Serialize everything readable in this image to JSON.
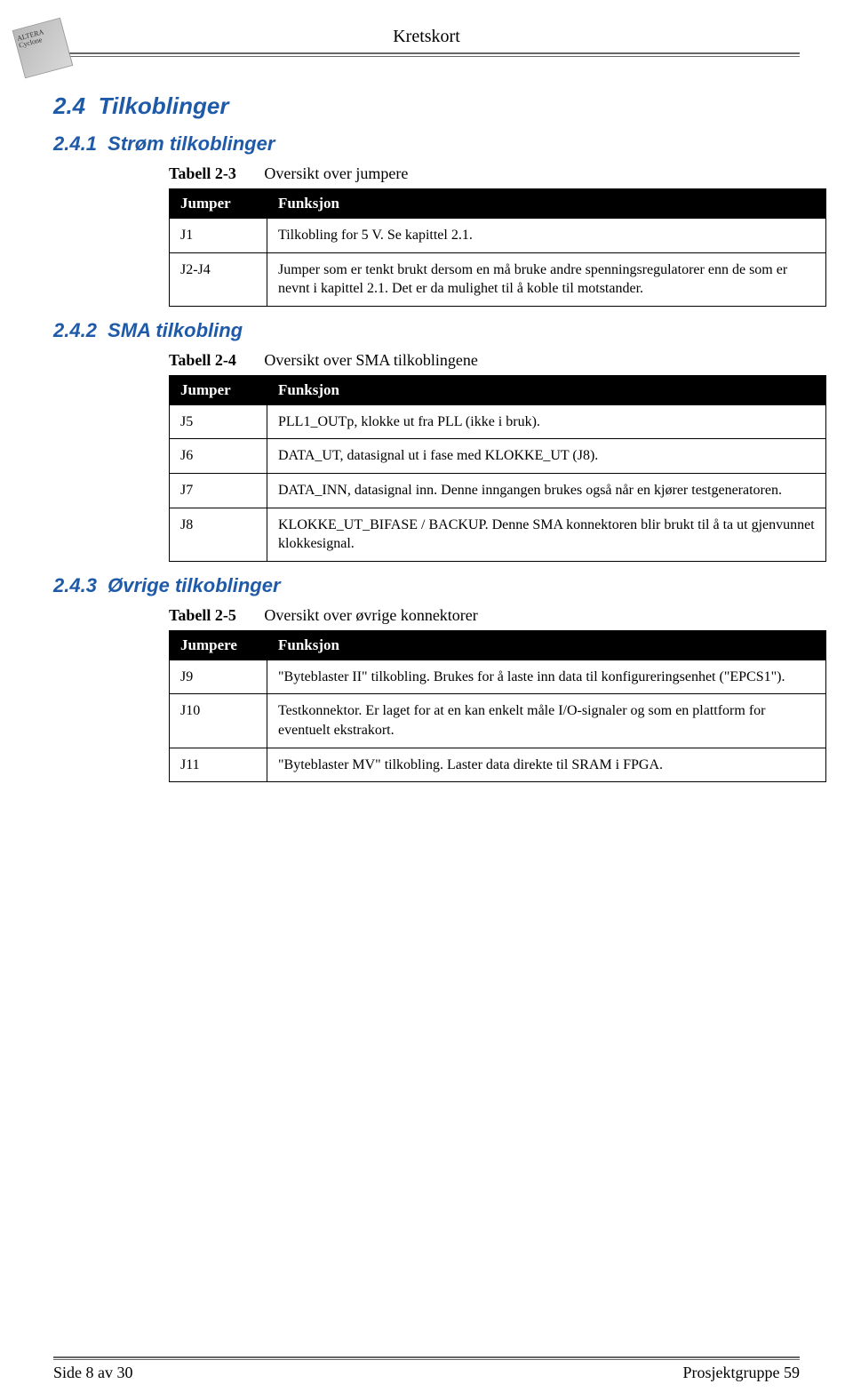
{
  "header": {
    "title": "Kretskort",
    "logo_text": "ALTERA Cyclone"
  },
  "section": {
    "h2_num": "2.4",
    "h2_title": "Tilkoblinger",
    "s1": {
      "num": "2.4.1",
      "title": "Strøm tilkoblinger",
      "caption_label": "Tabell 2-3",
      "caption_text": "Oversikt over jumpere",
      "col_a": "Jumper",
      "col_b": "Funksjon",
      "rows": [
        {
          "a": "J1",
          "b": "Tilkobling for 5 V. Se kapittel 2.1."
        },
        {
          "a": "J2-J4",
          "b": "Jumper som er tenkt brukt dersom en må bruke andre spenningsregulatorer enn de som er nevnt i kapittel 2.1. Det er da mulighet til å koble til motstander."
        }
      ]
    },
    "s2": {
      "num": "2.4.2",
      "title": "SMA tilkobling",
      "caption_label": "Tabell 2-4",
      "caption_text": "Oversikt over SMA tilkoblingene",
      "col_a": "Jumper",
      "col_b": "Funksjon",
      "rows": [
        {
          "a": "J5",
          "b": "PLL1_OUTp, klokke ut fra PLL (ikke i bruk)."
        },
        {
          "a": "J6",
          "b": "DATA_UT, datasignal ut i fase med KLOKKE_UT (J8)."
        },
        {
          "a": "J7",
          "b": "DATA_INN, datasignal inn.\nDenne inngangen brukes også når en kjører testgeneratoren."
        },
        {
          "a": "J8",
          "b": "KLOKKE_UT_BIFASE / BACKUP.\nDenne SMA konnektoren blir brukt til å ta ut gjenvunnet klokkesignal."
        }
      ]
    },
    "s3": {
      "num": "2.4.3",
      "title": "Øvrige tilkoblinger",
      "caption_label": "Tabell 2-5",
      "caption_text": "Oversikt over øvrige konnektorer",
      "col_a": "Jumpere",
      "col_b": "Funksjon",
      "rows": [
        {
          "a": "J9",
          "b": "\"Byteblaster II\" tilkobling. Brukes for å laste inn data til konfigureringsenhet (\"EPCS1\")."
        },
        {
          "a": "J10",
          "b": "Testkonnektor. Er laget for at en kan enkelt måle I/O-signaler og som en plattform for eventuelt ekstrakort."
        },
        {
          "a": "J11",
          "b": "\"Byteblaster MV\" tilkobling. Laster data direkte til SRAM i FPGA."
        }
      ]
    }
  },
  "footer": {
    "left": "Side 8 av 30",
    "right": "Prosjektgruppe 59"
  }
}
